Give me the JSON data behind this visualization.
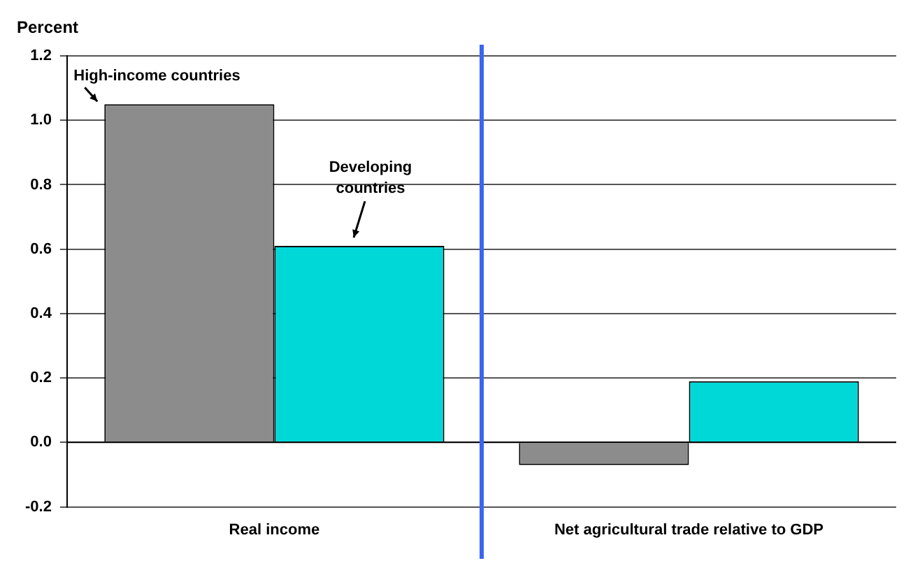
{
  "chart_data": {
    "type": "bar",
    "ylabel": "Percent",
    "categories": [
      "Real income",
      "Net agricultural trade relative to GDP"
    ],
    "series": [
      {
        "name": "High-income countries",
        "color": "#8c8c8c",
        "values": [
          1.05,
          -0.07
        ]
      },
      {
        "name": "Developing countries",
        "color": "#00d8d8",
        "values": [
          0.61,
          0.19
        ]
      }
    ],
    "ylim": [
      -0.2,
      1.2
    ],
    "yticks": [
      -0.2,
      {
        "value": 0,
        "label": "0.0"
      },
      0.2,
      0.4,
      0.6,
      0.8,
      {
        "value": 1,
        "label": "1.0"
      },
      1.2
    ],
    "grid": "y",
    "legend": false
  }
}
